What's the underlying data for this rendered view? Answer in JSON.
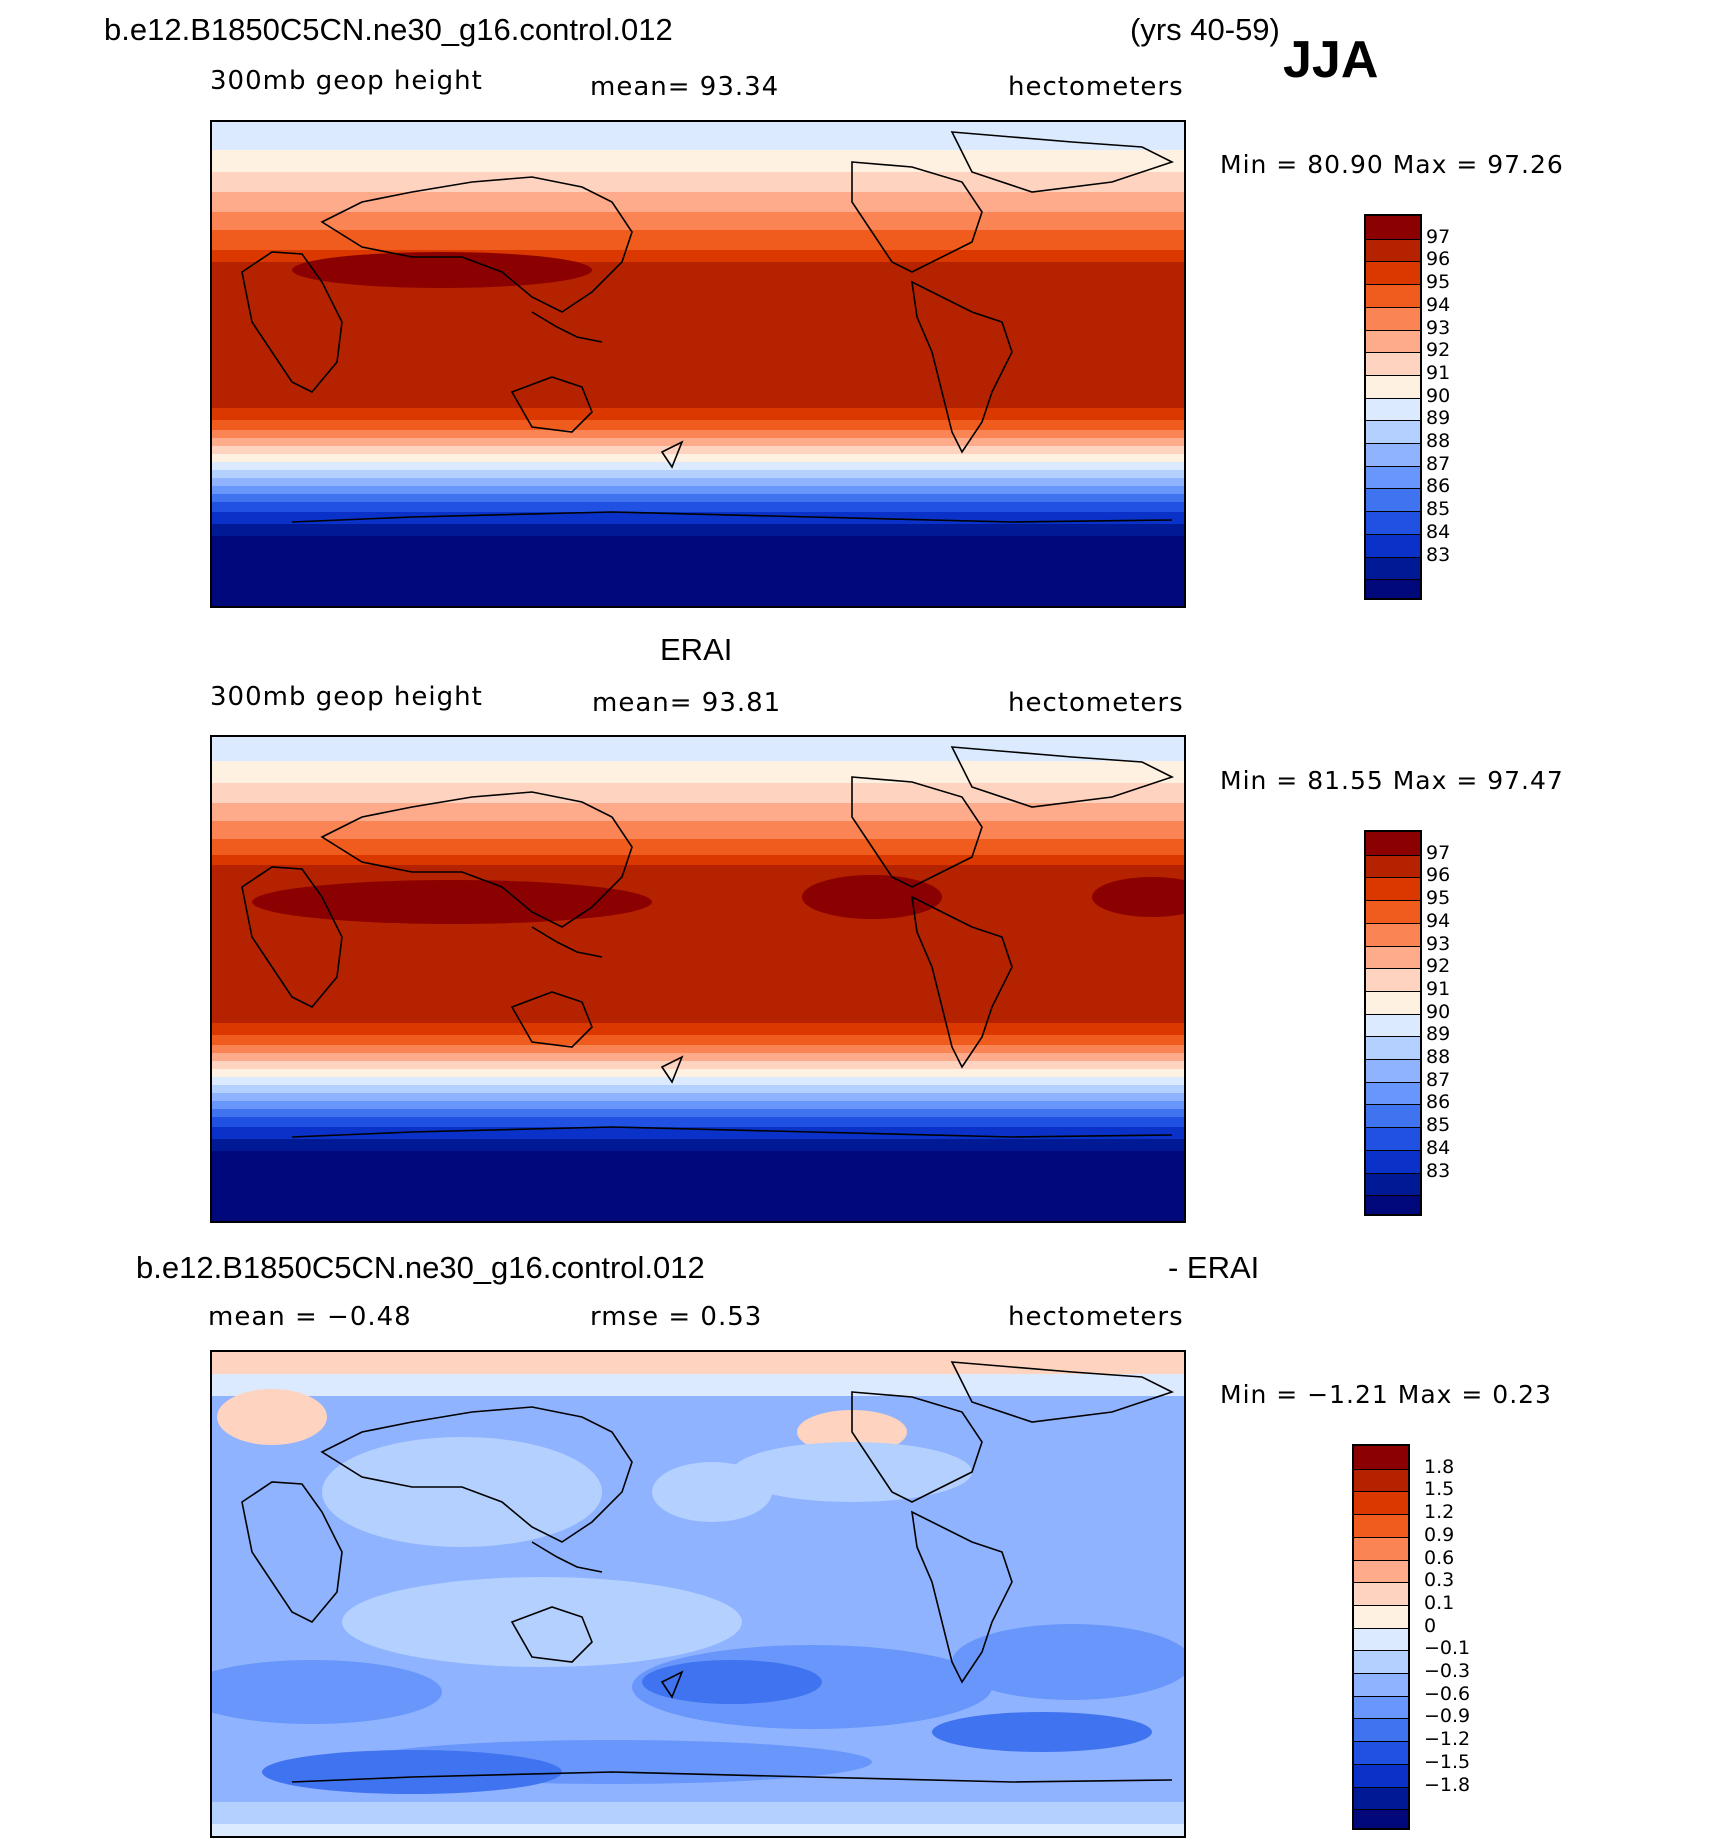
{
  "header": {
    "case_title": "b.e12.B1850C5CN.ne30_g16.control.012",
    "years": "(yrs 40-59)",
    "season": "JJA"
  },
  "panels": [
    {
      "title": "",
      "left_label": "300mb geop height",
      "center_label": "mean=   93.34",
      "right_label": "hectometers",
      "min_max": "Min =   80.90 Max =   97.26",
      "levels": [
        "97",
        "96",
        "95",
        "94",
        "93",
        "92",
        "91",
        "90",
        "89",
        "88",
        "87",
        "86",
        "85",
        "84",
        "83"
      ],
      "colors": [
        "#8b0000",
        "#b52200",
        "#db3800",
        "#f05c1e",
        "#fb8454",
        "#fdab8a",
        "#fed3bf",
        "#fff1e2",
        "#dbeaff",
        "#b4d0ff",
        "#8fb3ff",
        "#6896fb",
        "#4073ef",
        "#2051e3",
        "#0a32c8",
        "#001a96",
        "#00087a"
      ]
    },
    {
      "title": "ERAI",
      "left_label": "300mb geop height",
      "center_label": "mean=   93.81",
      "right_label": "hectometers",
      "min_max": "Min =   81.55 Max =   97.47",
      "levels": [
        "97",
        "96",
        "95",
        "94",
        "93",
        "92",
        "91",
        "90",
        "89",
        "88",
        "87",
        "86",
        "85",
        "84",
        "83"
      ],
      "colors": [
        "#8b0000",
        "#b52200",
        "#db3800",
        "#f05c1e",
        "#fb8454",
        "#fdab8a",
        "#fed3bf",
        "#fff1e2",
        "#dbeaff",
        "#b4d0ff",
        "#8fb3ff",
        "#6896fb",
        "#4073ef",
        "#2051e3",
        "#0a32c8",
        "#001a96",
        "#00087a"
      ]
    },
    {
      "title": "b.e12.B1850C5CN.ne30_g16.control.012",
      "title_suffix": "- ERAI",
      "left_label": "mean =   −0.48",
      "center_label": "rmse =    0.53",
      "right_label": "hectometers",
      "min_max": "Min =   −1.21 Max =    0.23",
      "levels": [
        "1.8",
        "1.5",
        "1.2",
        "0.9",
        "0.6",
        "0.3",
        "0.1",
        "0",
        "−0.1",
        "−0.3",
        "−0.6",
        "−0.9",
        "−1.2",
        "−1.5",
        "−1.8"
      ],
      "colors": [
        "#8b0000",
        "#b52200",
        "#db3800",
        "#f05c1e",
        "#fb8454",
        "#fdab8a",
        "#fed3bf",
        "#fff1e2",
        "#dbeaff",
        "#b4d0ff",
        "#8fb3ff",
        "#6896fb",
        "#4073ef",
        "#2051e3",
        "#0a32c8",
        "#001a96",
        "#00087a"
      ]
    }
  ]
}
